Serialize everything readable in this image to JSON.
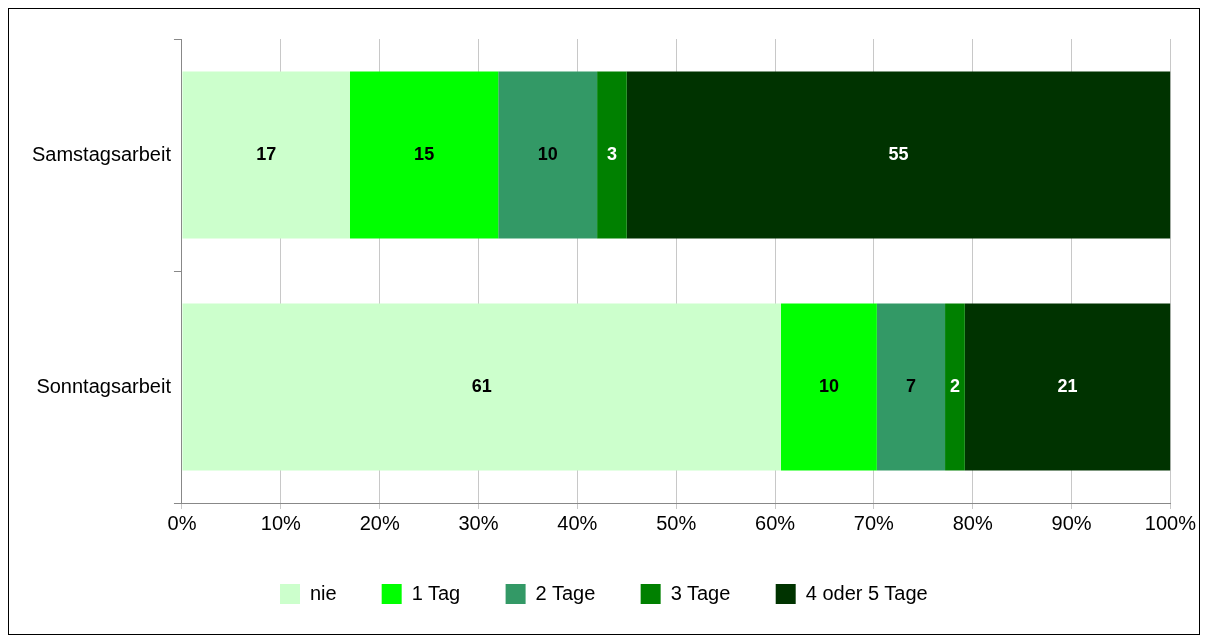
{
  "chart_data": {
    "type": "bar",
    "orientation": "horizontal",
    "stacked": true,
    "categories": [
      "Samstagsarbeit",
      "Sonntagsarbeit"
    ],
    "series": [
      {
        "name": "nie",
        "color": "#ccffcc",
        "values": [
          17,
          60.6
        ],
        "value_labels": [
          "17",
          "61"
        ]
      },
      {
        "name": "1 Tag",
        "color": "#00ff00",
        "values": [
          15,
          9.7
        ],
        "value_labels": [
          "15",
          "10"
        ]
      },
      {
        "name": "2 Tage",
        "color": "#339966",
        "values": [
          10,
          6.9
        ],
        "value_labels": [
          "10",
          "7"
        ]
      },
      {
        "name": "3 Tage",
        "color": "#008000",
        "values": [
          3,
          2.0
        ],
        "value_labels": [
          "3",
          "2"
        ]
      },
      {
        "name": "4 oder 5 Tage",
        "color": "#003300",
        "values": [
          55,
          20.8
        ],
        "value_labels": [
          "55",
          "21"
        ]
      }
    ],
    "xlim": [
      0,
      100
    ],
    "xticks": [
      {
        "value": 0,
        "label": "0%"
      },
      {
        "value": 10,
        "label": "10%"
      },
      {
        "value": 20,
        "label": "20%"
      },
      {
        "value": 30,
        "label": "30%"
      },
      {
        "value": 40,
        "label": "40%"
      },
      {
        "value": 50,
        "label": "50%"
      },
      {
        "value": 60,
        "label": "60%"
      },
      {
        "value": 70,
        "label": "70%"
      },
      {
        "value": 80,
        "label": "80%"
      },
      {
        "value": 90,
        "label": "90%"
      },
      {
        "value": 100,
        "label": "100%"
      }
    ],
    "grid": "x",
    "legend": "bottom"
  }
}
